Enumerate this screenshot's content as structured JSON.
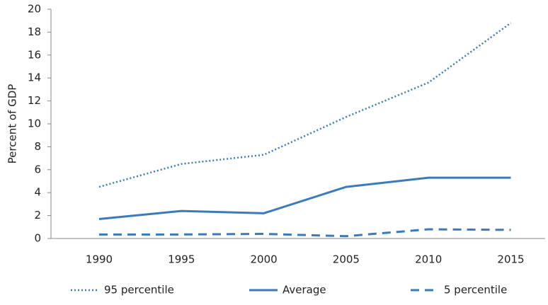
{
  "chart_data": {
    "type": "line",
    "y_label": "Percent of GDP",
    "categories": [
      "1990",
      "1995",
      "2000",
      "2005",
      "2010",
      "2015"
    ],
    "series": [
      {
        "name": "95 percentile",
        "color": "#3a7bbf",
        "style": "dotted",
        "values": [
          4.5,
          6.5,
          7.3,
          10.6,
          13.6,
          18.8
        ]
      },
      {
        "name": "Average",
        "color": "#3a7bbf",
        "style": "solid",
        "values": [
          1.7,
          2.4,
          2.2,
          4.5,
          5.3,
          5.3
        ]
      },
      {
        "name": "5 percentile",
        "color": "#3a7bbf",
        "style": "dashed",
        "values": [
          0.35,
          0.35,
          0.4,
          0.2,
          0.8,
          0.75
        ]
      }
    ],
    "ylim": [
      0,
      20
    ],
    "yticks": [
      0,
      2,
      4,
      6,
      8,
      10,
      12,
      14,
      16,
      18,
      20
    ],
    "grid": false
  }
}
